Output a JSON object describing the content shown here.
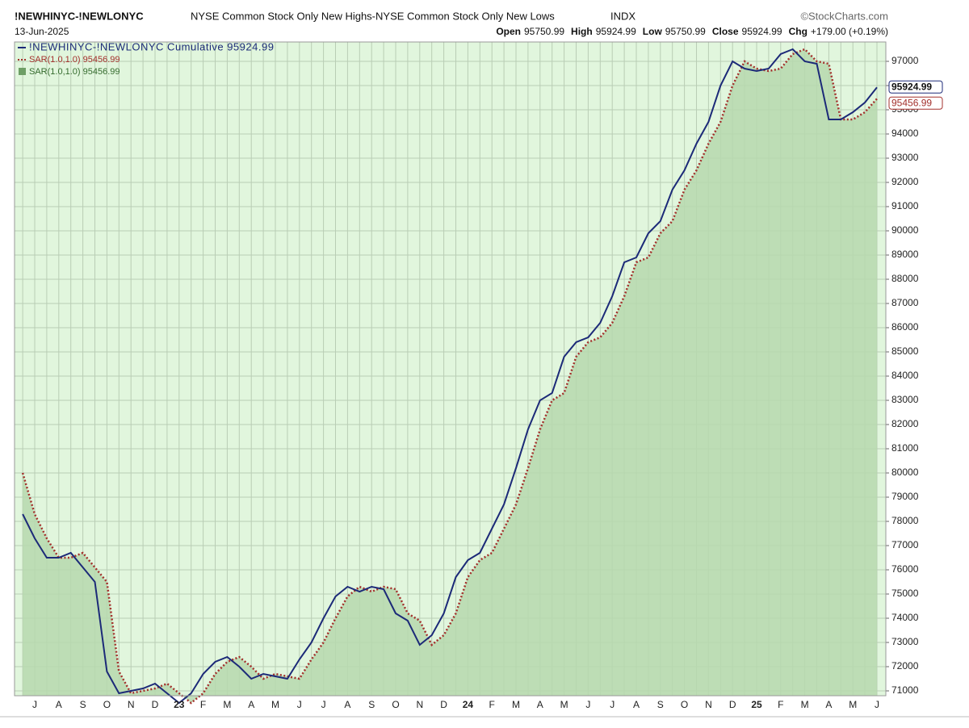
{
  "header": {
    "symbol": "!NEWHINYC-!NEWLONYC",
    "description": "NYSE Common Stock Only New Highs-NYSE Common Stock Only New Lows",
    "exchange": "INDX",
    "source": "©StockCharts.com",
    "date": "13-Jun-2025",
    "quote": [
      {
        "label": "Open",
        "value": 95750.99
      },
      {
        "label": "High",
        "value": 95924.99
      },
      {
        "label": "Low",
        "value": 95750.99
      },
      {
        "label": "Close",
        "value": 95924.99
      },
      {
        "label": "Chg",
        "value": "+179.00 (+0.19%)"
      }
    ]
  },
  "chart_data": {
    "type": "line",
    "categories": [
      null,
      "J",
      null,
      "A",
      null,
      "S",
      null,
      "O",
      null,
      "N",
      null,
      "D",
      null,
      "23",
      null,
      "F",
      null,
      "M",
      null,
      "A",
      null,
      "M",
      null,
      "J",
      null,
      "J",
      null,
      "A",
      null,
      "S",
      null,
      "O",
      null,
      "N",
      null,
      "D",
      null,
      "24",
      null,
      "F",
      null,
      "M",
      null,
      "A",
      null,
      "M",
      null,
      "J",
      null,
      "J",
      null,
      "A",
      null,
      "S",
      null,
      "O",
      null,
      "N",
      null,
      "D",
      null,
      "25",
      null,
      "F",
      null,
      "M",
      null,
      "A",
      null,
      "M",
      null,
      "J"
    ],
    "series": [
      {
        "name": "!NEWHINYC-!NEWLONYC Cumulative 95924.99",
        "color": "#1c2a78",
        "style": "line",
        "values": [
          78300,
          77300,
          76500,
          76500,
          76700,
          76100,
          75500,
          71800,
          70900,
          71000,
          71100,
          71300,
          70900,
          70500,
          70900,
          71700,
          72200,
          72400,
          72000,
          71500,
          71700,
          71600,
          71500,
          72300,
          73000,
          74000,
          74900,
          75300,
          75100,
          75300,
          75200,
          74200,
          73900,
          72900,
          73300,
          74200,
          75700,
          76400,
          76700,
          77700,
          78700,
          80200,
          81800,
          83000,
          83300,
          84800,
          85400,
          85600,
          86200,
          87300,
          88700,
          88900,
          89900,
          90400,
          91700,
          92500,
          93600,
          94500,
          96000,
          97000,
          96700,
          96600,
          96700,
          97300,
          97500,
          97000,
          96900,
          94600,
          94600,
          94900,
          95300,
          95924.99
        ]
      },
      {
        "name": "SAR(1.0,1.0) 95456.99",
        "color": "#a3302c",
        "style": "dotted",
        "values": [
          80000,
          78300,
          77300,
          76500,
          76500,
          76700,
          76100,
          75500,
          71800,
          70900,
          71000,
          71100,
          71300,
          70900,
          70500,
          70900,
          71700,
          72200,
          72400,
          72000,
          71500,
          71700,
          71600,
          71500,
          72300,
          73000,
          74000,
          74900,
          75300,
          75100,
          75300,
          75200,
          74200,
          73900,
          72900,
          73300,
          74200,
          75700,
          76400,
          76700,
          77700,
          78700,
          80200,
          81800,
          83000,
          83300,
          84800,
          85400,
          85600,
          86200,
          87300,
          88700,
          88900,
          89900,
          90400,
          91700,
          92500,
          93600,
          94500,
          96000,
          97000,
          96700,
          96600,
          96700,
          97300,
          97500,
          97000,
          96900,
          94600,
          94600,
          94900,
          95456.99
        ]
      },
      {
        "name": "SAR(1.0,1.0) 95456.99",
        "color": "#b6d8ae",
        "style": "area",
        "values": [
          80000,
          78300,
          77300,
          76500,
          76500,
          76700,
          76100,
          75500,
          71800,
          70900,
          71000,
          71100,
          71300,
          70900,
          70500,
          70900,
          71700,
          72200,
          72400,
          72000,
          71500,
          71700,
          71600,
          71500,
          72300,
          73000,
          74000,
          74900,
          75300,
          75100,
          75300,
          75200,
          74200,
          73900,
          72900,
          73300,
          74200,
          75700,
          76400,
          76700,
          77700,
          78700,
          80200,
          81800,
          83000,
          83300,
          84800,
          85400,
          85600,
          86200,
          87300,
          88700,
          88900,
          89900,
          90400,
          91700,
          92500,
          93600,
          94500,
          96000,
          97000,
          96700,
          96600,
          96700,
          97300,
          97500,
          97000,
          96900,
          94600,
          94600,
          94900,
          95456.99
        ]
      }
    ],
    "ylim": [
      70800,
      97800
    ],
    "yticks": [
      71000,
      72000,
      73000,
      74000,
      75000,
      76000,
      77000,
      78000,
      79000,
      80000,
      81000,
      82000,
      83000,
      84000,
      85000,
      86000,
      87000,
      88000,
      89000,
      90000,
      91000,
      92000,
      93000,
      94000,
      95000,
      96000,
      97000
    ],
    "grid": true,
    "legend": "upper left",
    "background": "#e1f6dd"
  }
}
